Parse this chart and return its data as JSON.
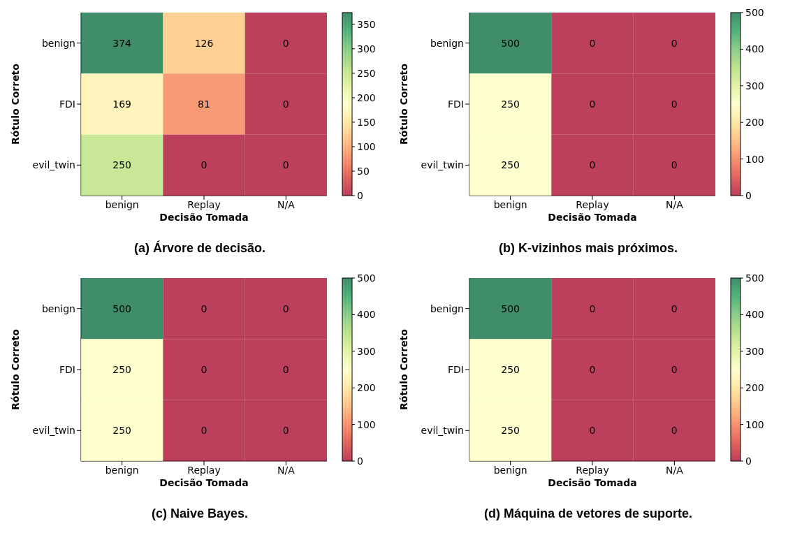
{
  "chart_data": [
    {
      "type": "heatmap",
      "title": "(a) Árvore de decisão.",
      "xlabel": "Decisão Tomada",
      "ylabel": "Rótulo Correto",
      "categories": [
        "benign",
        "Replay",
        "N/A"
      ],
      "y_categories": [
        "benign",
        "FDI",
        "evil_twin"
      ],
      "cells": [
        [
          374,
          126,
          0
        ],
        [
          169,
          81,
          0
        ],
        [
          250,
          0,
          0
        ]
      ],
      "data_labels": true,
      "clim": [
        0,
        374
      ],
      "cticks": [
        0,
        50,
        100,
        150,
        200,
        250,
        300,
        350
      ]
    },
    {
      "type": "heatmap",
      "title": "(b) K-vizinhos mais próximos.",
      "xlabel": "Decisão Tomada",
      "ylabel": "Rótulo Correto",
      "categories": [
        "benign",
        "Replay",
        "N/A"
      ],
      "y_categories": [
        "benign",
        "FDI",
        "evil_twin"
      ],
      "cells": [
        [
          500,
          0,
          0
        ],
        [
          250,
          0,
          0
        ],
        [
          250,
          0,
          0
        ]
      ],
      "data_labels": true,
      "clim": [
        0,
        500
      ],
      "cticks": [
        0,
        100,
        200,
        300,
        400,
        500
      ]
    },
    {
      "type": "heatmap",
      "title": "(c) Naive Bayes.",
      "xlabel": "Decisão Tomada",
      "ylabel": "Rótulo Correto",
      "categories": [
        "benign",
        "Replay",
        "N/A"
      ],
      "y_categories": [
        "benign",
        "FDI",
        "evil_twin"
      ],
      "cells": [
        [
          500,
          0,
          0
        ],
        [
          250,
          0,
          0
        ],
        [
          250,
          0,
          0
        ]
      ],
      "data_labels": true,
      "clim": [
        0,
        500
      ],
      "cticks": [
        0,
        100,
        200,
        300,
        400,
        500
      ]
    },
    {
      "type": "heatmap",
      "title": "(d) Máquina de vetores de suporte.",
      "xlabel": "Decisão Tomada",
      "ylabel": "Rótulo Correto",
      "categories": [
        "benign",
        "Replay",
        "N/A"
      ],
      "y_categories": [
        "benign",
        "FDI",
        "evil_twin"
      ],
      "cells": [
        [
          500,
          0,
          0
        ],
        [
          250,
          0,
          0
        ],
        [
          250,
          0,
          0
        ]
      ],
      "data_labels": true,
      "clim": [
        0,
        500
      ],
      "cticks": [
        0,
        100,
        200,
        300,
        400,
        500
      ]
    }
  ]
}
